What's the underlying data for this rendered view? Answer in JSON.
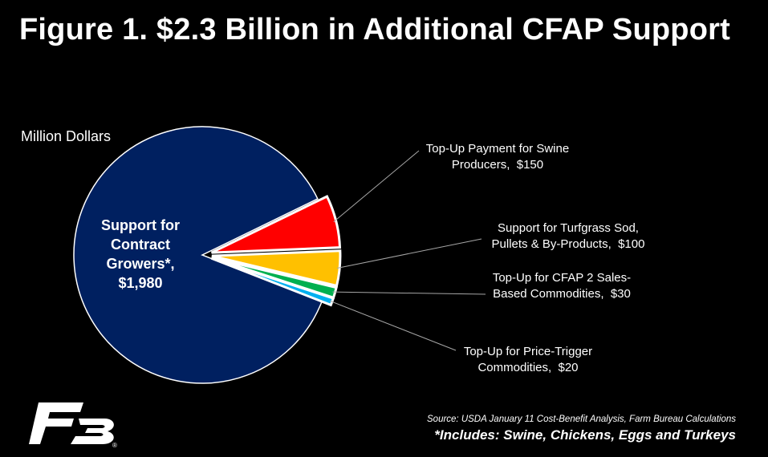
{
  "title": "Figure 1. $2.3 Billion in Additional CFAP Support",
  "units_label": "Million Dollars",
  "source": "Source: USDA January 11 Cost-Benefit Analysis, Farm Bureau Calculations",
  "footnote": "*Includes: Swine, Chickens, Eggs and Turkeys",
  "logo_text": "FB",
  "chart_data": {
    "type": "pie",
    "total_label": "$2.3 Billion",
    "units": "Million Dollars",
    "slices": [
      {
        "label_lines": [
          "Support for",
          "Contract",
          "Growers*,",
          "$1,980"
        ],
        "label": "Support for Contract Growers*",
        "value": 1980,
        "color": "#002060",
        "exploded": false
      },
      {
        "label_lines": [
          "Top-Up Payment for Swine",
          "Producers,  $150"
        ],
        "label": "Top-Up Payment for Swine Producers",
        "value": 150,
        "color": "#ff0000",
        "exploded": true
      },
      {
        "label_lines": [
          "Support for Turfgrass Sod,",
          "Pullets & By-Products,  $100"
        ],
        "label": "Support for Turfgrass Sod, Pullets & By-Products",
        "value": 100,
        "color": "#ffc000",
        "exploded": true
      },
      {
        "label_lines": [
          "Top-Up for CFAP 2 Sales-",
          "Based Commodities,  $30"
        ],
        "label": "Top-Up for CFAP 2 Sales-Based Commodities",
        "value": 30,
        "color": "#00b050",
        "exploded": true
      },
      {
        "label_lines": [
          "Top-Up for Price-Trigger",
          "Commodities,  $20"
        ],
        "label": "Top-Up for Price-Trigger Commodities",
        "value": 20,
        "color": "#00b0f0",
        "exploded": true
      }
    ]
  }
}
